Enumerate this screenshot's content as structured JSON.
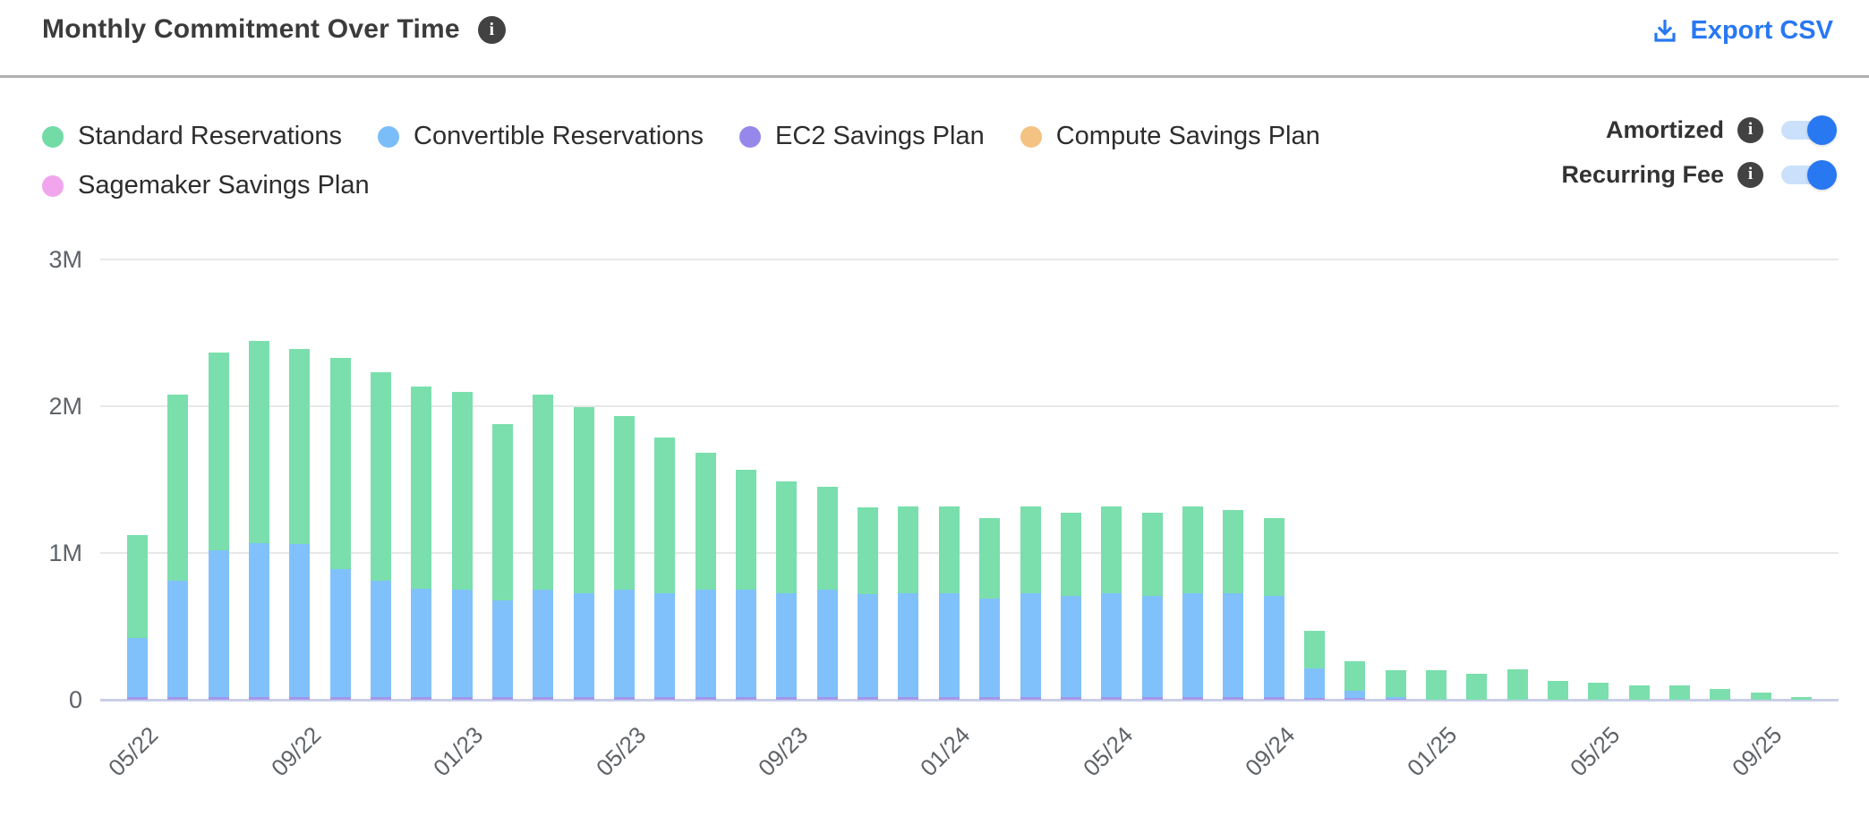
{
  "header": {
    "title": "Monthly Commitment Over Time",
    "export_label": "Export CSV"
  },
  "legend": {
    "items": [
      {
        "label": "Standard Reservations",
        "color": "#72dba6"
      },
      {
        "label": "Convertible Reservations",
        "color": "#7bbdf9"
      },
      {
        "label": "EC2 Savings Plan",
        "color": "#9688ea"
      },
      {
        "label": "Compute Savings Plan",
        "color": "#f4c383"
      },
      {
        "label": "Sagemaker Savings Plan",
        "color": "#f0a5ed"
      }
    ]
  },
  "toggles": [
    {
      "label": "Amortized",
      "state": "on"
    },
    {
      "label": "Recurring Fee",
      "state": "on"
    }
  ],
  "colors": {
    "accent_blue": "#2878f2",
    "toggle_track": "#cbe0fa",
    "toggle_knob": "#2878f2",
    "info_badge": "#424242",
    "axis_text": "#5f6368",
    "gridline": "#e8e8e8",
    "axis_baseline": "#c9cfe9"
  },
  "chart_data": {
    "type": "bar",
    "stacked": true,
    "title": "Monthly Commitment Over Time",
    "xlabel": "",
    "ylabel": "",
    "unit": "M USD",
    "ylim": [
      0,
      3
    ],
    "ytick_labels": [
      "0",
      "1M",
      "2M",
      "3M"
    ],
    "grid": true,
    "legend_position": "top-left",
    "categories": [
      "05/22",
      "06/22",
      "07/22",
      "08/22",
      "09/22",
      "10/22",
      "11/22",
      "12/22",
      "01/23",
      "02/23",
      "03/23",
      "04/23",
      "05/23",
      "06/23",
      "07/23",
      "08/23",
      "09/23",
      "10/23",
      "11/23",
      "12/23",
      "01/24",
      "02/24",
      "03/24",
      "04/24",
      "05/24",
      "06/24",
      "07/24",
      "08/24",
      "09/24",
      "10/24",
      "11/24",
      "12/24",
      "01/25",
      "02/25",
      "03/25",
      "04/25",
      "05/25",
      "06/25",
      "07/25",
      "08/25",
      "09/25",
      "10/25"
    ],
    "tick_indices": [
      0,
      4,
      8,
      12,
      16,
      20,
      24,
      28,
      32,
      36,
      40
    ],
    "series": [
      {
        "name": "EC2 Savings Plan",
        "color": "#a496eb",
        "values": [
          0.02,
          0.02,
          0.02,
          0.02,
          0.02,
          0.02,
          0.02,
          0.02,
          0.02,
          0.02,
          0.02,
          0.02,
          0.02,
          0.02,
          0.02,
          0.02,
          0.02,
          0.02,
          0.02,
          0.02,
          0.02,
          0.02,
          0.02,
          0.02,
          0.02,
          0.02,
          0.02,
          0.02,
          0.02,
          0.015,
          0.01,
          0.005,
          0,
          0,
          0,
          0,
          0,
          0,
          0,
          0,
          0,
          0
        ]
      },
      {
        "name": "Convertible Reservations",
        "color": "#81c1fb",
        "values": [
          0.4,
          0.79,
          1.0,
          1.05,
          1.04,
          0.87,
          0.79,
          0.74,
          0.73,
          0.66,
          0.73,
          0.71,
          0.73,
          0.71,
          0.73,
          0.73,
          0.71,
          0.73,
          0.7,
          0.71,
          0.71,
          0.67,
          0.71,
          0.69,
          0.71,
          0.69,
          0.71,
          0.71,
          0.69,
          0.2,
          0.05,
          0.01,
          0,
          0,
          0,
          0,
          0,
          0,
          0,
          0,
          0,
          0
        ]
      },
      {
        "name": "Standard Reservations",
        "color": "#7adfac",
        "values": [
          0.7,
          1.27,
          1.35,
          1.38,
          1.33,
          1.44,
          1.42,
          1.38,
          1.35,
          1.2,
          1.33,
          1.27,
          1.18,
          1.06,
          0.93,
          0.82,
          0.76,
          0.7,
          0.59,
          0.59,
          0.59,
          0.55,
          0.59,
          0.57,
          0.59,
          0.57,
          0.59,
          0.57,
          0.53,
          0.255,
          0.2,
          0.185,
          0.2,
          0.175,
          0.205,
          0.13,
          0.115,
          0.1,
          0.1,
          0.075,
          0.05,
          0.02
        ]
      },
      {
        "name": "Compute Savings Plan",
        "color": "#f4c383",
        "values": [
          0,
          0,
          0,
          0,
          0,
          0,
          0,
          0,
          0,
          0,
          0,
          0,
          0,
          0,
          0,
          0,
          0,
          0,
          0,
          0,
          0,
          0,
          0,
          0,
          0,
          0,
          0,
          0,
          0,
          0,
          0,
          0,
          0,
          0,
          0,
          0,
          0,
          0,
          0,
          0,
          0,
          0
        ]
      },
      {
        "name": "Sagemaker Savings Plan",
        "color": "#f0a5ed",
        "values": [
          0,
          0,
          0,
          0,
          0,
          0,
          0,
          0,
          0,
          0,
          0,
          0,
          0,
          0,
          0,
          0,
          0,
          0,
          0,
          0,
          0,
          0,
          0,
          0,
          0,
          0,
          0,
          0,
          0,
          0,
          0,
          0,
          0,
          0,
          0,
          0,
          0,
          0,
          0,
          0,
          0,
          0
        ]
      }
    ]
  }
}
